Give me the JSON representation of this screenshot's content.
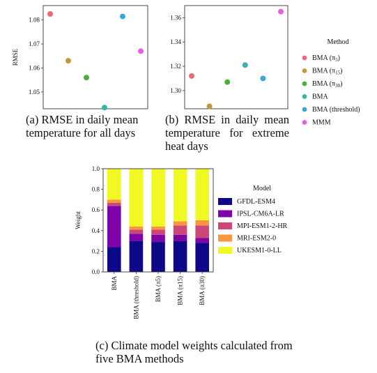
{
  "chart_data": [
    {
      "type": "scatter",
      "panel": "(a)",
      "ylabel": "RMSE",
      "ylim": [
        1.043,
        1.086
      ],
      "yticks": [
        "1.05",
        "1.06",
        "1.07",
        "1.08"
      ],
      "ytick_values": [
        1.05,
        1.06,
        1.07,
        1.08
      ],
      "points": [
        {
          "method": "BMA (π5)",
          "order": 0,
          "y": 1.0825
        },
        {
          "method": "BMA (π15)",
          "order": 1,
          "y": 1.063
        },
        {
          "method": "BMA (π30)",
          "order": 2,
          "y": 1.056
        },
        {
          "method": "BMA",
          "order": 3,
          "y": 1.0435
        },
        {
          "method": "BMA (threshold)",
          "order": 4,
          "y": 1.0815
        },
        {
          "method": "MMM",
          "order": 5,
          "y": 1.067
        }
      ],
      "caption_label": "(a)",
      "caption": "RMSE in daily mean temperature for all days"
    },
    {
      "type": "scatter",
      "panel": "(b)",
      "ylabel": "",
      "ylim": [
        1.285,
        1.37
      ],
      "yticks": [
        "1.30",
        "1.32",
        "1.34",
        "1.36"
      ],
      "ytick_values": [
        1.3,
        1.32,
        1.34,
        1.36
      ],
      "points": [
        {
          "method": "BMA (π5)",
          "order": 0,
          "y": 1.312
        },
        {
          "method": "BMA (π15)",
          "order": 1,
          "y": 1.287
        },
        {
          "method": "BMA (π30)",
          "order": 2,
          "y": 1.307
        },
        {
          "method": "BMA",
          "order": 3,
          "y": 1.321
        },
        {
          "method": "BMA (threshold)",
          "order": 4,
          "y": 1.31
        },
        {
          "method": "MMM",
          "order": 5,
          "y": 1.365
        }
      ],
      "caption_label": "(b)",
      "caption": "RMSE in daily mean temperature for extreme heat days"
    },
    {
      "type": "bar",
      "stacked": true,
      "panel": "(c)",
      "ylabel": "Weight",
      "ylim": [
        0,
        1.0
      ],
      "yticks": [
        "0.0",
        "0.2",
        "0.4",
        "0.6",
        "0.8",
        "1.0"
      ],
      "ytick_values": [
        0,
        0.2,
        0.4,
        0.6,
        0.8,
        1.0
      ],
      "categories": [
        "BMA",
        "BMA (threshold)",
        "BMA (π5)",
        "BMA (π15)",
        "BMA (π30)"
      ],
      "series": [
        {
          "name": "GFDL-ESM4",
          "color": "#0d0887",
          "values": [
            0.24,
            0.3,
            0.29,
            0.3,
            0.28
          ]
        },
        {
          "name": "IPSL-CM6A-LR",
          "color": "#7e03a8",
          "values": [
            0.4,
            0.07,
            0.07,
            0.06,
            0.05
          ]
        },
        {
          "name": "MPI-ESM1-2-HR",
          "color": "#cc4778",
          "values": [
            0.03,
            0.04,
            0.05,
            0.09,
            0.12
          ]
        },
        {
          "name": "MRI-ESM2-0",
          "color": "#f89540",
          "values": [
            0.03,
            0.03,
            0.03,
            0.04,
            0.05
          ]
        },
        {
          "name": "UKESM1-0-LL",
          "color": "#f0f921",
          "values": [
            0.3,
            0.56,
            0.56,
            0.51,
            0.5
          ]
        }
      ],
      "caption_label": "(c)",
      "caption": "Climate model weights calculated from five BMA methods"
    }
  ],
  "method_legend": {
    "title": "Method",
    "items": [
      {
        "label": "BMA (π",
        "sub": "5",
        "suffix": ")",
        "color": "#f0667c"
      },
      {
        "label": "BMA (π",
        "sub": "15",
        "suffix": ")",
        "color": "#c29838"
      },
      {
        "label": "BMA (π",
        "sub": "30",
        "suffix": ")",
        "color": "#4dae3a"
      },
      {
        "label": "BMA",
        "sub": "",
        "suffix": "",
        "color": "#36b5a4"
      },
      {
        "label": "BMA (threshold)",
        "sub": "",
        "suffix": "",
        "color": "#3aa6dc"
      },
      {
        "label": "MMM",
        "sub": "",
        "suffix": "",
        "color": "#e95ee0"
      }
    ]
  },
  "model_legend": {
    "title": "Model"
  }
}
